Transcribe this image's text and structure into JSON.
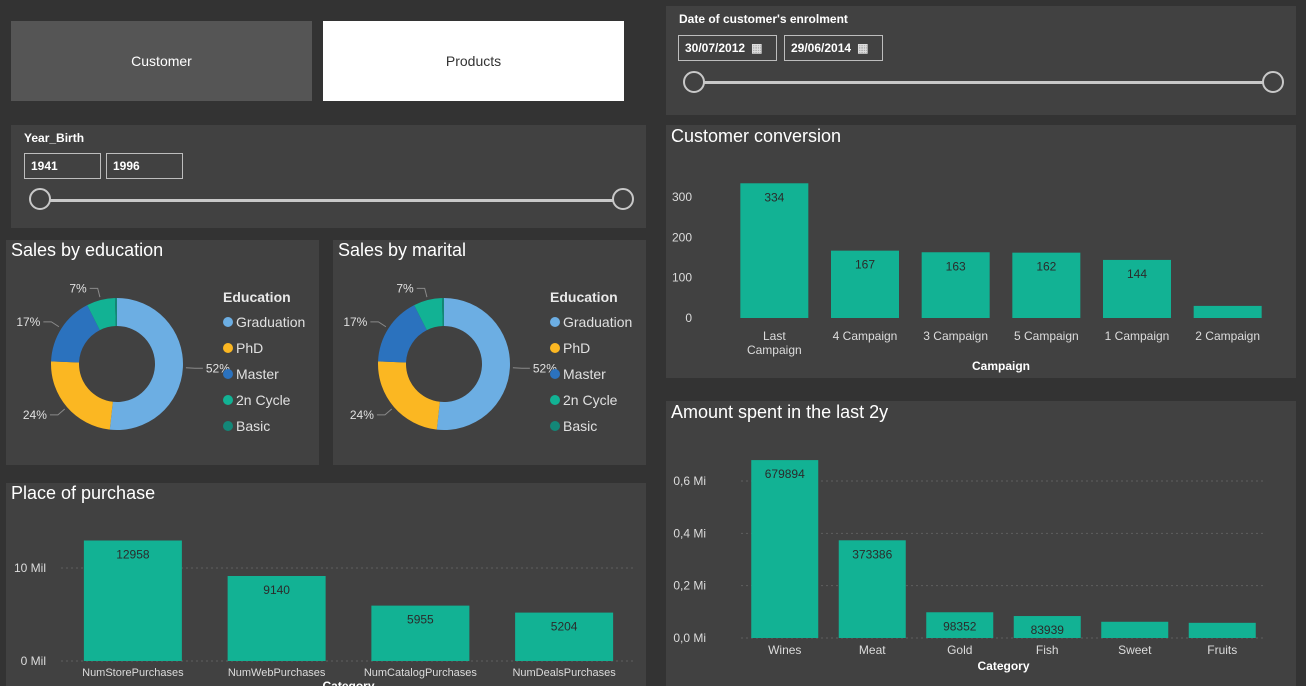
{
  "buttons": {
    "customer": "Customer",
    "products": "Products"
  },
  "enrolment_slicer": {
    "title": "Date of customer's enrolment",
    "start": "30/07/2012",
    "end": "29/06/2014"
  },
  "year_slicer": {
    "title": "Year_Birth",
    "min": "1941",
    "max": "1996"
  },
  "colors": {
    "background": "#333333",
    "panel": "#414141",
    "bar": "#12b294",
    "graduation": "#6caee3",
    "phd": "#fbb722",
    "master": "#2b72be",
    "cycle": "#12b294",
    "basic": "#138778"
  },
  "icons": {
    "calendar": "calendar-icon"
  },
  "education_chart": {
    "title": "Sales by education",
    "legend_title": "Education",
    "chart_data": {
      "type": "pie",
      "title": "Sales by education",
      "slices": [
        {
          "name": "Graduation",
          "value": 52,
          "label": "52%",
          "color": "#6caee3"
        },
        {
          "name": "PhD",
          "value": 24,
          "label": "24%",
          "color": "#fbb722"
        },
        {
          "name": "Master",
          "value": 17,
          "label": "17%",
          "color": "#2b72be"
        },
        {
          "name": "2n Cycle",
          "value": 7,
          "label": "7%",
          "color": "#12b294"
        },
        {
          "name": "Basic",
          "value": 0.5,
          "label": "",
          "color": "#138778"
        }
      ]
    }
  },
  "marital_chart": {
    "title": "Sales by marital",
    "legend_title": "Education",
    "chart_data": {
      "type": "pie",
      "title": "Sales by marital",
      "slices": [
        {
          "name": "Graduation",
          "value": 52,
          "label": "52%",
          "color": "#6caee3"
        },
        {
          "name": "PhD",
          "value": 24,
          "label": "24%",
          "color": "#fbb722"
        },
        {
          "name": "Master",
          "value": 17,
          "label": "17%",
          "color": "#2b72be"
        },
        {
          "name": "2n Cycle",
          "value": 7,
          "label": "7%",
          "color": "#12b294"
        },
        {
          "name": "Basic",
          "value": 0.5,
          "label": "",
          "color": "#138778"
        }
      ]
    }
  },
  "place_chart": {
    "title": "Place of purchase",
    "chart_data": {
      "type": "bar",
      "title": "Place of purchase",
      "categories": [
        "NumStorePurchases",
        "NumWebPurchases",
        "NumCatalogPurchases",
        "NumDealsPurchases"
      ],
      "values": [
        12958,
        9140,
        5955,
        5204
      ],
      "data_labels": [
        "12958",
        "9140",
        "5955",
        "5204"
      ],
      "ylim": [
        0,
        10000
      ],
      "yticks": [
        0,
        10000
      ],
      "ytick_labels": [
        "0 Mil",
        "10 Mil"
      ],
      "xlabel": "Category",
      "grid": true
    }
  },
  "conversion_chart": {
    "title": "Customer conversion",
    "chart_data": {
      "type": "bar",
      "title": "Customer conversion",
      "categories": [
        [
          "Last",
          "Campaign"
        ],
        [
          "4 Campaign"
        ],
        [
          "3 Campaign"
        ],
        [
          "5 Campaign"
        ],
        [
          "1 Campaign"
        ],
        [
          "2 Campaign"
        ]
      ],
      "values": [
        334,
        167,
        163,
        162,
        144,
        30
      ],
      "data_labels": [
        "334",
        "167",
        "163",
        "162",
        "144",
        ""
      ],
      "ylim": [
        0,
        300
      ],
      "yticks": [
        0,
        100,
        200,
        300
      ],
      "ytick_labels": [
        "0",
        "100",
        "200",
        "300"
      ],
      "xlabel": "Campaign",
      "grid": false
    }
  },
  "amount_chart": {
    "title": "Amount spent in the last 2y",
    "chart_data": {
      "type": "bar",
      "title": "Amount spent in the last 2y",
      "categories": [
        "Wines",
        "Meat",
        "Gold",
        "Fish",
        "Sweet",
        "Fruits"
      ],
      "values": [
        679894,
        373386,
        98352,
        83939,
        62000,
        58000
      ],
      "data_labels": [
        "679894",
        "373386",
        "98352",
        "83939",
        "",
        ""
      ],
      "ylim": [
        0,
        600000
      ],
      "yticks": [
        0,
        200000,
        400000,
        600000
      ],
      "ytick_labels": [
        "0,0 Mi",
        "0,2 Mi",
        "0,4 Mi",
        "0,6 Mi"
      ],
      "xlabel": "Category",
      "grid": true
    }
  }
}
